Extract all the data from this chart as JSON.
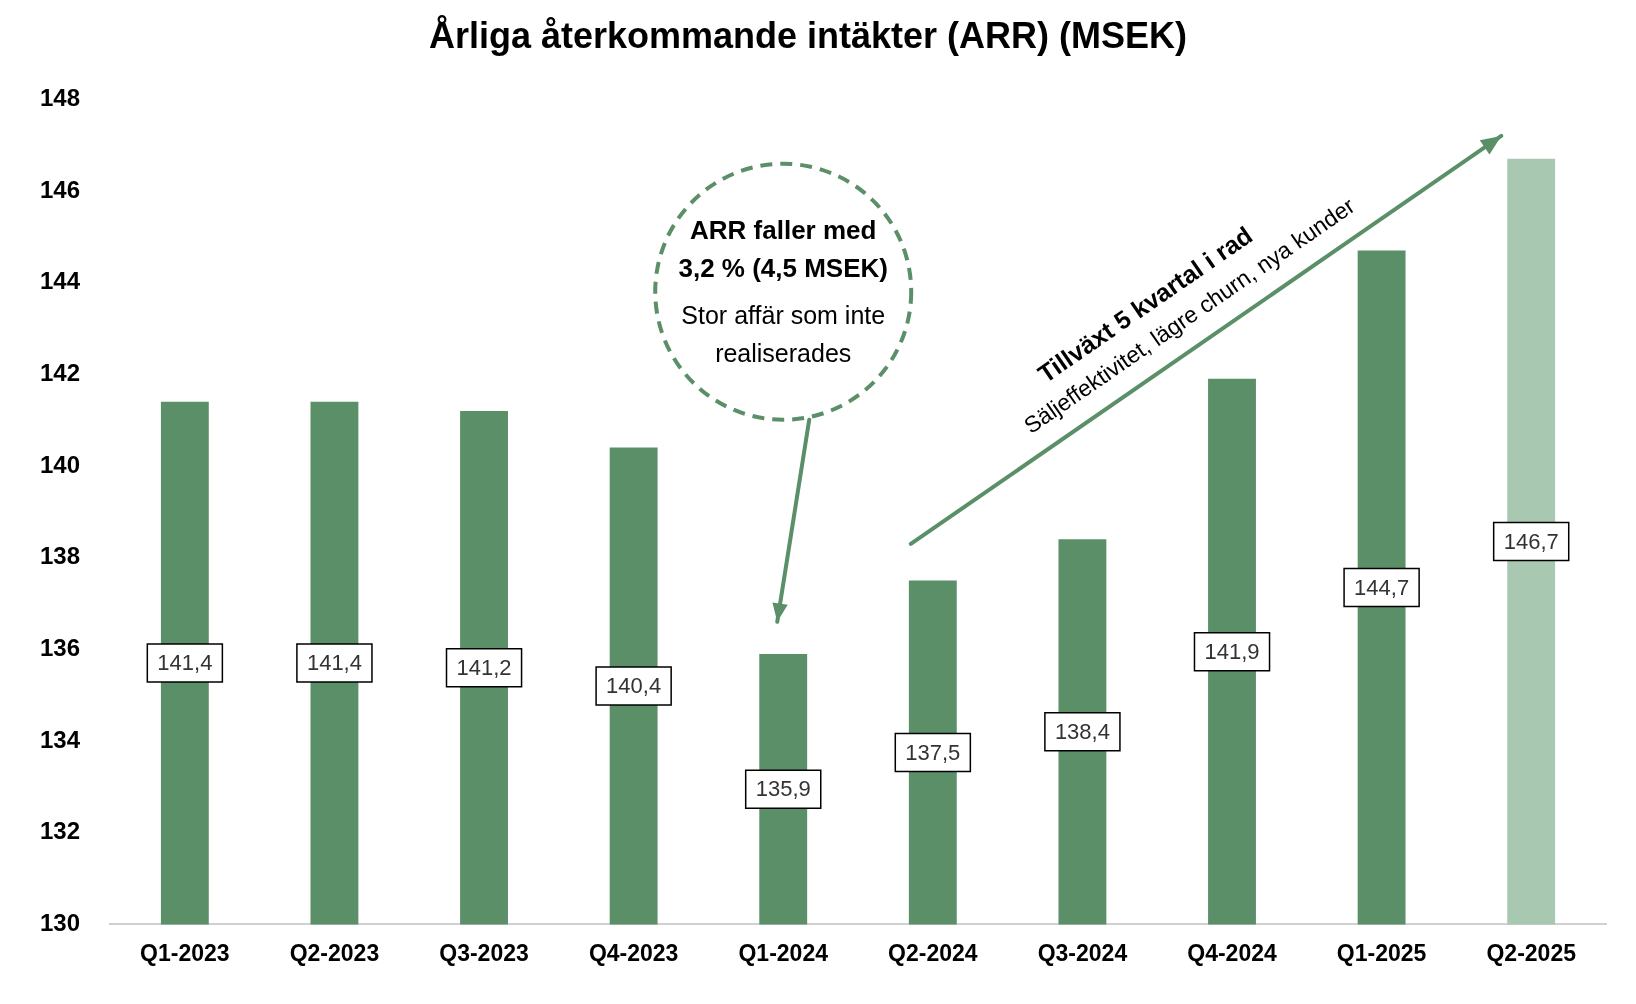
{
  "chart_data": {
    "type": "bar",
    "title": "Årliga återkommande intäkter (ARR) (MSEK)",
    "categories": [
      "Q1-2023",
      "Q2-2023",
      "Q3-2023",
      "Q4-2023",
      "Q1-2024",
      "Q2-2024",
      "Q3-2024",
      "Q4-2024",
      "Q1-2025",
      "Q2-2025"
    ],
    "values": [
      141.4,
      141.4,
      141.2,
      140.4,
      135.9,
      137.5,
      138.4,
      141.9,
      144.7,
      146.7
    ],
    "value_labels": [
      "141,4",
      "141,4",
      "141,2",
      "140,4",
      "135,9",
      "137,5",
      "138,4",
      "141,9",
      "144,7",
      "146,7"
    ],
    "colors": [
      "#5a8f68",
      "#5a8f68",
      "#5a8f68",
      "#5a8f68",
      "#5a8f68",
      "#5a8f68",
      "#5a8f68",
      "#5a8f68",
      "#5a8f68",
      "#a9c8b1"
    ],
    "ylim": [
      130,
      148
    ],
    "yticks": [
      130,
      132,
      134,
      136,
      138,
      140,
      142,
      144,
      146,
      148
    ],
    "grid": false,
    "legend": false,
    "annotations": [
      "ARR faller med",
      "3,2 % (4,5 MSEK)",
      "Stor affär som inte",
      "realiserades",
      "Tillväxt 5 kvartal i rad",
      "Säljeffektivitet, lägre churn, nya kunder"
    ]
  }
}
